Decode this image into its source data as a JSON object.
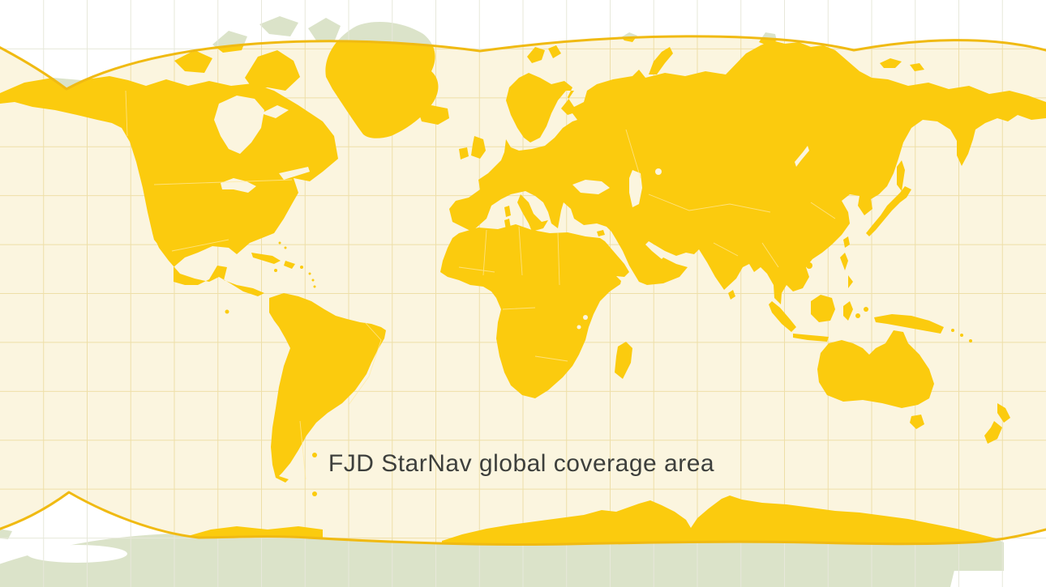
{
  "map": {
    "caption": "FJD StarNav global coverage area",
    "grid": {
      "columns": 24,
      "rows": 12
    },
    "palette": {
      "background": "#ffffff",
      "coverage_fill": "#fbf5df",
      "coverage_outline": "#f0ba12",
      "covered_land": "#fbcb0e",
      "uncovered_land": "#dbe3c9",
      "grid_outside": "#e7e8da",
      "grid_inside": "#eedfa8",
      "caption_color": "#3d3f3c"
    }
  }
}
